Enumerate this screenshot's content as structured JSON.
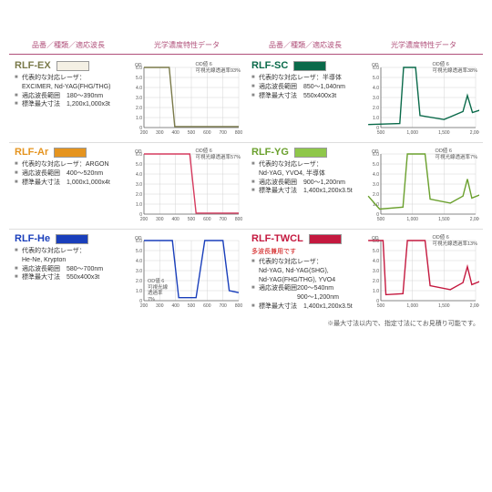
{
  "headers": {
    "spec": "品番／種類／適応波長",
    "chart": "光学濃度特性データ"
  },
  "footer_note": "※最大寸法以内で、指定寸法にてお見積り可能です。",
  "axis_short": {
    "xticks": [
      200,
      300,
      400,
      500,
      600,
      700,
      800
    ],
    "yticks": [
      0,
      "1.0",
      "2.0",
      "3.0",
      "4.0",
      "5.0",
      "6.0"
    ],
    "ylabel": "OD"
  },
  "axis_long": {
    "xticks": [
      500,
      1000,
      1500,
      2000
    ],
    "yticks": [
      0,
      "1.0",
      "2.0",
      "3.0",
      "4.0",
      "5.0",
      "6.0"
    ],
    "ylabel": "OD"
  },
  "chart_style": {
    "bg": "#fff",
    "axis_color": "#666",
    "grid_color": "#ccc",
    "line_width": 1.4,
    "font_size": 5
  },
  "products": [
    {
      "name": "RLF-EX",
      "swatch": "#f4f0e4",
      "name_color": "#7a7a4a",
      "specs": [
        "代表的な対応レーザ：\nEXCIMER, Nd-YAG(FHG/THG)",
        "適応波長範囲　180～390nm",
        "標準最大寸法　1,200x1,000x3t"
      ],
      "chart_note": "OD値 6\n可視光線透過率93%",
      "line_color": "#7a7a4a",
      "path_short": [
        [
          200,
          6
        ],
        [
          360,
          6
        ],
        [
          395,
          0.1
        ],
        [
          800,
          0.1
        ]
      ]
    },
    {
      "name": "RLF-SC",
      "swatch": "#0a6a4a",
      "name_color": "#0a6a4a",
      "specs": [
        "代表的な対応レーザ：半導体",
        "適応波長範囲　850～1,040nm",
        "標準最大寸法　550x400x3t"
      ],
      "chart_note": "OD値 6\n可視光線透過率38%",
      "line_color": "#0a6a4a",
      "path_long": [
        [
          300,
          0.3
        ],
        [
          800,
          0.4
        ],
        [
          860,
          6
        ],
        [
          1050,
          6
        ],
        [
          1120,
          1.2
        ],
        [
          1500,
          0.8
        ],
        [
          1800,
          1.6
        ],
        [
          1870,
          3.2
        ],
        [
          1950,
          1.5
        ],
        [
          2100,
          1.8
        ],
        [
          2200,
          1.5
        ]
      ]
    },
    {
      "name": "RLF-Ar",
      "swatch": "#e5941f",
      "name_color": "#e5941f",
      "specs": [
        "代表的な対応レーザ：ARGON",
        "適応波長範囲　400～520nm",
        "標準最大寸法　1,000x1,000x4t"
      ],
      "chart_note": "OD値 6\n可視光線透過率57%",
      "line_color": "#d63a5e",
      "path_short": [
        [
          200,
          6
        ],
        [
          490,
          6
        ],
        [
          530,
          0.1
        ],
        [
          800,
          0.1
        ]
      ]
    },
    {
      "name": "RLF-YG",
      "swatch": "#8fc74a",
      "name_color": "#6aa02d",
      "specs": [
        "代表的な対応レーザ：\nNd-YAG, YVO4, 半導体",
        "適応波長範囲　900～1,200nm",
        "標準最大寸法　1,400x1,200x3.5t"
      ],
      "chart_note": "OD値 6\n可視光線透過率7%",
      "line_color": "#6aa02d",
      "path_long": [
        [
          300,
          1.8
        ],
        [
          480,
          0.5
        ],
        [
          850,
          0.7
        ],
        [
          920,
          6
        ],
        [
          1200,
          6
        ],
        [
          1280,
          1.5
        ],
        [
          1600,
          1.1
        ],
        [
          1800,
          1.8
        ],
        [
          1870,
          3.5
        ],
        [
          1940,
          1.6
        ],
        [
          2100,
          2.0
        ],
        [
          2200,
          1.7
        ]
      ]
    },
    {
      "name": "RLF-He",
      "swatch": "#1a3fbb",
      "name_color": "#1a3fbb",
      "specs": [
        "代表的な対応レーザ：\nHe-Ne, Krypton",
        "適応波長範囲　580～700nm",
        "標準最大寸法　550x400x3t"
      ],
      "chart_note": "OD値 6\n可視光線\n透過率\n7%",
      "line_color": "#1a3fbb",
      "path_short": [
        [
          200,
          6
        ],
        [
          380,
          6
        ],
        [
          420,
          0.3
        ],
        [
          530,
          0.3
        ],
        [
          585,
          6
        ],
        [
          700,
          6
        ],
        [
          740,
          1.0
        ],
        [
          800,
          0.8
        ]
      ],
      "note_pos": "left"
    },
    {
      "name": "RLF-TWCL",
      "swatch": "#c4193f",
      "name_color": "#c4193f",
      "sub_note": "多波長兼用です",
      "specs": [
        "代表的な対応レーザ：\nNd-YAG, Nd-YAG(SHG),\nNd-YAG(FHG/THG), YVO4",
        "適応波長範囲200～540nm\n　　　　　　900～1,200nm",
        "標準最大寸法　1,400x1,200x3.5t"
      ],
      "chart_note": "OD値 6\n可視光線透過率13%",
      "line_color": "#c4193f",
      "path_long": [
        [
          300,
          6
        ],
        [
          535,
          6
        ],
        [
          580,
          0.6
        ],
        [
          850,
          0.7
        ],
        [
          920,
          6
        ],
        [
          1200,
          6
        ],
        [
          1280,
          1.5
        ],
        [
          1600,
          1.1
        ],
        [
          1800,
          1.8
        ],
        [
          1870,
          3.4
        ],
        [
          1940,
          1.6
        ],
        [
          2100,
          2.0
        ],
        [
          2200,
          1.7
        ]
      ]
    }
  ]
}
